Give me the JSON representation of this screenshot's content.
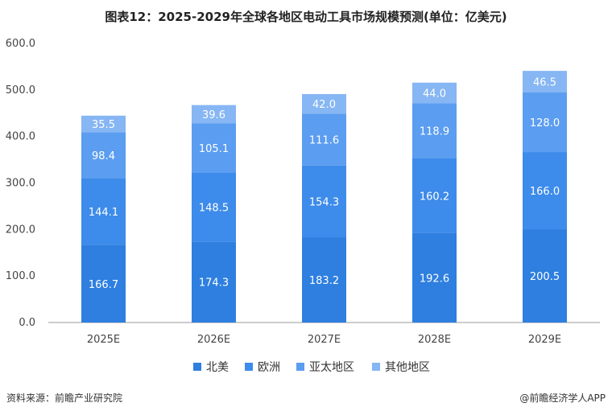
{
  "chart_data": {
    "type": "bar",
    "stacked": true,
    "title": "图表12：2025-2029年全球各地区电动工具市场规模预测(单位：亿美元)",
    "categories": [
      "2025E",
      "2026E",
      "2027E",
      "2028E",
      "2029E"
    ],
    "series": [
      {
        "name": "北美",
        "color": "#2E7FE0",
        "values": [
          166.7,
          174.3,
          183.2,
          192.6,
          200.5
        ]
      },
      {
        "name": "欧洲",
        "color": "#3D8BEA",
        "values": [
          144.1,
          148.5,
          154.3,
          160.2,
          166.0
        ]
      },
      {
        "name": "亚太地区",
        "color": "#5B9DF0",
        "values": [
          98.4,
          105.1,
          111.6,
          118.9,
          128.0
        ]
      },
      {
        "name": "其他地区",
        "color": "#86B6F3",
        "values": [
          35.5,
          39.6,
          42.0,
          44.0,
          46.5
        ]
      }
    ],
    "ylim": [
      0,
      600
    ],
    "yticks": [
      "0.0",
      "100.0",
      "200.0",
      "300.0",
      "400.0",
      "500.0",
      "600.0"
    ],
    "grid": false,
    "legend": "bottom"
  },
  "footer": {
    "source": "资料来源：前瞻产业研究院",
    "credit": "@前瞻经济学人APP"
  }
}
